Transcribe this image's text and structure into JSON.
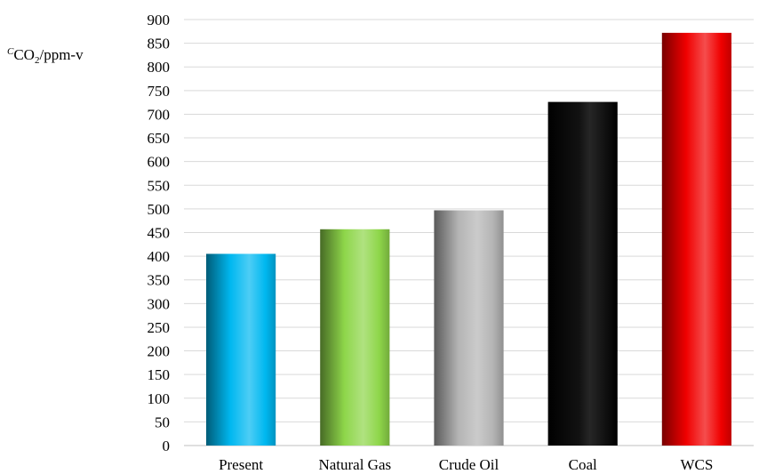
{
  "chart_data": {
    "type": "bar",
    "ylabel": {
      "sup": "C",
      "main": "CO",
      "sub": "2",
      "tail": "/ppm-v"
    },
    "categories": [
      "Present",
      "Natural Gas",
      "Crude Oil",
      "Coal",
      "WCS"
    ],
    "values": [
      405,
      457,
      497,
      726,
      872
    ],
    "colors": [
      "#00b8f0",
      "#8ed64a",
      "#b4b4b4",
      "#000000",
      "#f00000"
    ],
    "ylim": [
      0,
      900
    ],
    "yticks": [
      0,
      50,
      100,
      150,
      200,
      250,
      300,
      350,
      400,
      450,
      500,
      550,
      600,
      650,
      700,
      750,
      800,
      850,
      900
    ],
    "grid": true,
    "legend": "none"
  }
}
